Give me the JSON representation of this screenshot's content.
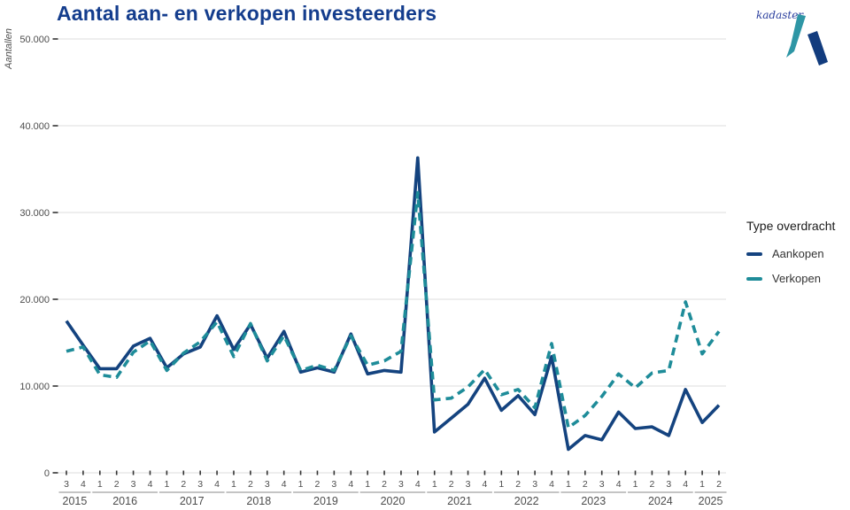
{
  "header": {
    "title": "Aantal aan- en verkopen investeerders"
  },
  "logo": {
    "text": "kadaster",
    "teal": "#2e96a5",
    "navy": "#123c7e"
  },
  "y_axis": {
    "label": "Aantallen",
    "tick_labels": [
      "0",
      "10.000",
      "20.000",
      "30.000",
      "40.000",
      "50.000"
    ]
  },
  "legend": {
    "title": "Type overdracht",
    "items": [
      {
        "label": "Aankopen",
        "color": "#14437f",
        "style": "solid"
      },
      {
        "label": "Verkopen",
        "color": "#1e8c99",
        "style": "dashed"
      }
    ]
  },
  "colors": {
    "title": "#143d8d",
    "gridline": "#e3e3e3",
    "axis_tick": "#333333",
    "axis_text": "#4d4d4d",
    "year_underline": "#b0b0b0"
  },
  "chart_data": {
    "type": "line",
    "title": "Aantal aan- en verkopen investeerders",
    "xlabel": "",
    "ylabel": "Aantallen",
    "ylim": [
      0,
      50000
    ],
    "y_ticks": [
      0,
      10000,
      20000,
      30000,
      40000,
      50000
    ],
    "grid": true,
    "legend_position": "right",
    "legend_title": "Type overdracht",
    "x_quarter_labels": [
      "3",
      "4",
      "1",
      "2",
      "3",
      "4",
      "1",
      "2",
      "3",
      "4",
      "1",
      "2",
      "3",
      "4",
      "1",
      "2",
      "3",
      "4",
      "1",
      "2",
      "3",
      "4",
      "1",
      "2",
      "3",
      "4",
      "1",
      "2",
      "3",
      "4",
      "1",
      "2",
      "3",
      "4",
      "1",
      "2",
      "3",
      "4",
      "1",
      "2"
    ],
    "year_groups": [
      {
        "label": "2015",
        "count": 2
      },
      {
        "label": "2016",
        "count": 4
      },
      {
        "label": "2017",
        "count": 4
      },
      {
        "label": "2018",
        "count": 4
      },
      {
        "label": "2019",
        "count": 4
      },
      {
        "label": "2020",
        "count": 4
      },
      {
        "label": "2021",
        "count": 4
      },
      {
        "label": "2022",
        "count": 4
      },
      {
        "label": "2023",
        "count": 4
      },
      {
        "label": "2024",
        "count": 4
      },
      {
        "label": "2025",
        "count": 2
      }
    ],
    "series": [
      {
        "name": "Aankopen",
        "color": "#14437f",
        "dash": null,
        "values": [
          17500,
          14700,
          12000,
          12000,
          14600,
          15500,
          12100,
          13700,
          14500,
          18100,
          14200,
          17100,
          13200,
          16300,
          11600,
          12100,
          11600,
          16000,
          11400,
          11800,
          11600,
          36300,
          4700,
          6300,
          7900,
          10900,
          7200,
          8900,
          6700,
          13400,
          2700,
          4300,
          3800,
          7000,
          5100,
          5300,
          4300,
          9600,
          5800,
          7800
        ]
      },
      {
        "name": "Verkopen",
        "color": "#1e8c99",
        "dash": [
          9,
          6
        ],
        "values": [
          14000,
          14500,
          11300,
          11000,
          13900,
          15200,
          11800,
          13800,
          15100,
          17400,
          13400,
          17200,
          12900,
          15800,
          11800,
          12400,
          11800,
          15800,
          12400,
          12900,
          14000,
          32300,
          8400,
          8600,
          9900,
          11900,
          9000,
          9600,
          7500,
          14900,
          5200,
          6600,
          8800,
          11400,
          9800,
          11500,
          11800,
          19700,
          13700,
          16300
        ]
      }
    ]
  }
}
